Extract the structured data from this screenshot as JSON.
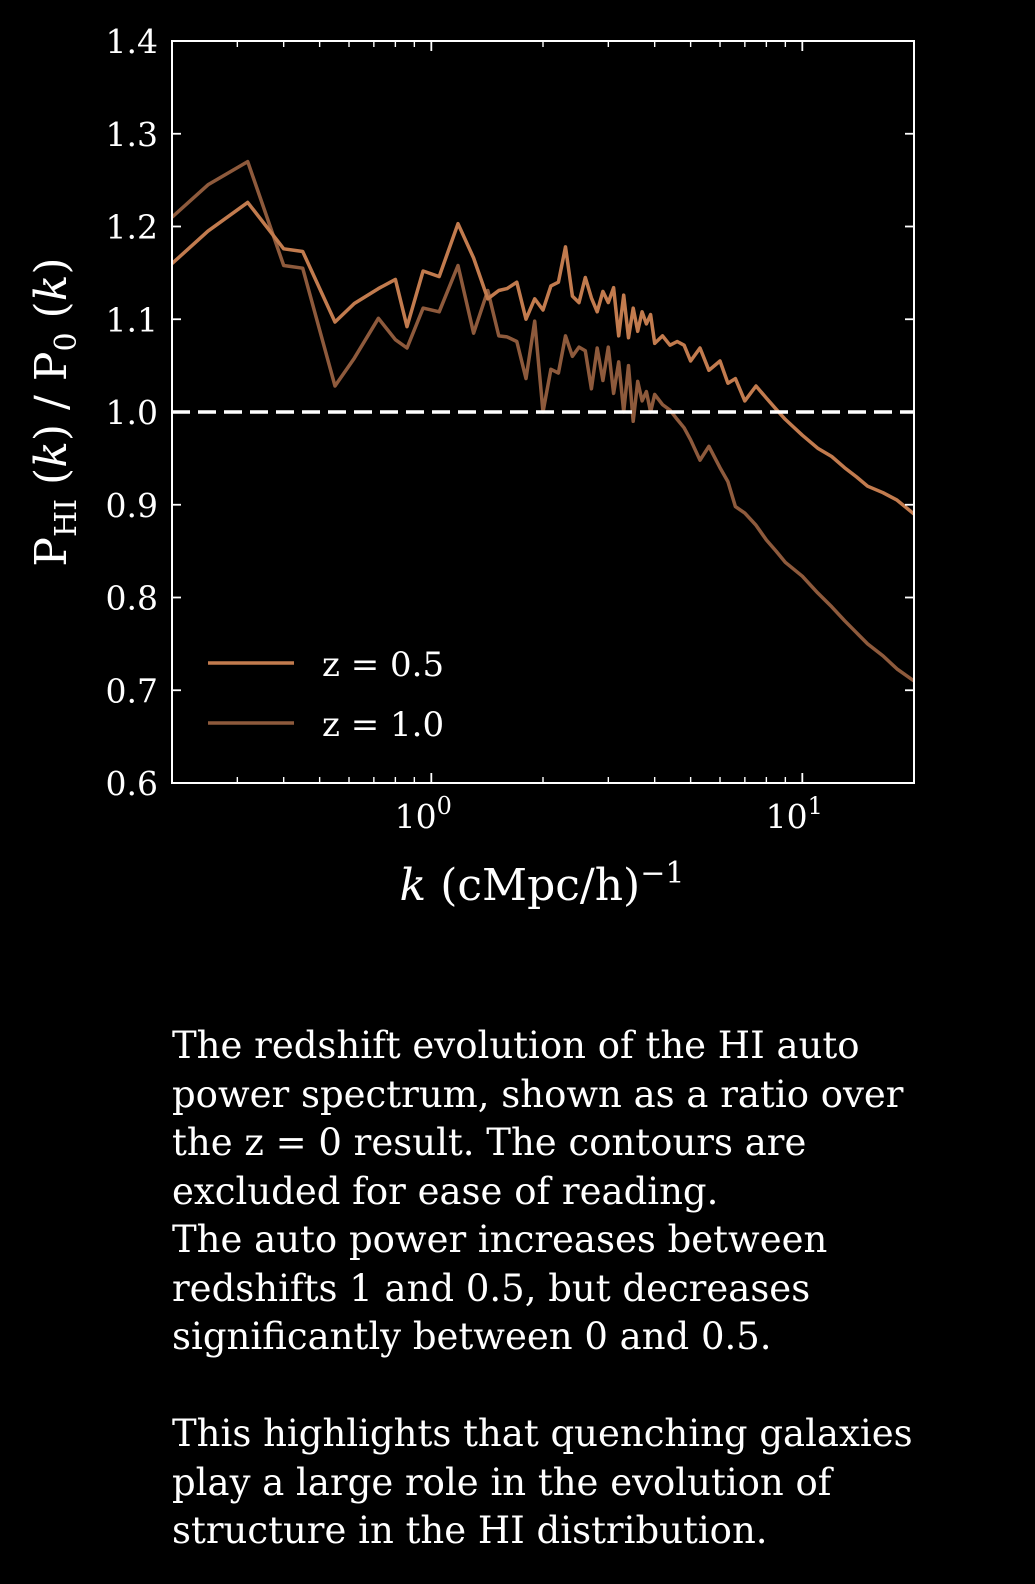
{
  "colors": {
    "background": "#000000",
    "foreground": "#ffffff",
    "z05": "#c27b4e",
    "z10": "#8e5a3c"
  },
  "chart_data": {
    "type": "line",
    "xscale": "log",
    "xlim": [
      0.2,
      20
    ],
    "ylim": [
      0.6,
      1.4
    ],
    "yticks": [
      "0.6",
      "0.7",
      "0.8",
      "0.9",
      "1.0",
      "1.1",
      "1.2",
      "1.3",
      "1.4"
    ],
    "xticks": [
      {
        "base": "10",
        "exp": "0",
        "value": 1
      },
      {
        "base": "10",
        "exp": "1",
        "value": 10
      }
    ],
    "reference_line": {
      "y": 1.0,
      "style": "dashed"
    },
    "legend_placement": "lower-left",
    "series": [
      {
        "name": "z = 0.5",
        "color": "#c27b4e",
        "x": [
          0.2,
          0.25,
          0.32,
          0.4,
          0.45,
          0.55,
          0.62,
          0.72,
          0.8,
          0.86,
          0.95,
          1.05,
          1.18,
          1.3,
          1.42,
          1.52,
          1.6,
          1.7,
          1.8,
          1.9,
          2.0,
          2.1,
          2.2,
          2.3,
          2.4,
          2.5,
          2.6,
          2.7,
          2.8,
          2.9,
          3.0,
          3.1,
          3.2,
          3.3,
          3.4,
          3.5,
          3.6,
          3.7,
          3.8,
          3.9,
          4.0,
          4.2,
          4.4,
          4.6,
          4.8,
          5.0,
          5.3,
          5.6,
          6.0,
          6.3,
          6.6,
          7.0,
          7.5,
          8.0,
          8.5,
          9.0,
          10.0,
          11.0,
          12.0,
          13.0,
          14.0,
          15.0,
          16.5,
          18.0,
          20.0
        ],
        "y": [
          1.16,
          1.195,
          1.226,
          1.176,
          1.173,
          1.097,
          1.117,
          1.133,
          1.143,
          1.092,
          1.152,
          1.146,
          1.203,
          1.166,
          1.122,
          1.131,
          1.133,
          1.14,
          1.1,
          1.122,
          1.11,
          1.136,
          1.14,
          1.178,
          1.125,
          1.118,
          1.145,
          1.123,
          1.108,
          1.13,
          1.118,
          1.134,
          1.082,
          1.126,
          1.08,
          1.112,
          1.087,
          1.108,
          1.095,
          1.105,
          1.074,
          1.082,
          1.072,
          1.076,
          1.072,
          1.055,
          1.069,
          1.045,
          1.055,
          1.031,
          1.036,
          1.012,
          1.028,
          1.015,
          1.003,
          0.992,
          0.975,
          0.961,
          0.952,
          0.94,
          0.93,
          0.92,
          0.913,
          0.905,
          0.89
        ]
      },
      {
        "name": "z = 1.0",
        "color": "#8e5a3c",
        "x": [
          0.2,
          0.25,
          0.32,
          0.4,
          0.45,
          0.55,
          0.62,
          0.72,
          0.8,
          0.86,
          0.95,
          1.05,
          1.18,
          1.3,
          1.42,
          1.52,
          1.6,
          1.7,
          1.8,
          1.9,
          2.0,
          2.1,
          2.2,
          2.3,
          2.4,
          2.5,
          2.6,
          2.7,
          2.8,
          2.9,
          3.0,
          3.1,
          3.2,
          3.3,
          3.4,
          3.5,
          3.6,
          3.7,
          3.8,
          3.9,
          4.0,
          4.2,
          4.4,
          4.6,
          4.8,
          5.0,
          5.3,
          5.6,
          6.0,
          6.3,
          6.6,
          7.0,
          7.5,
          8.0,
          8.5,
          9.0,
          10.0,
          11.0,
          12.0,
          13.0,
          14.0,
          15.0,
          16.5,
          18.0,
          20.0
        ],
        "y": [
          1.21,
          1.245,
          1.27,
          1.158,
          1.155,
          1.028,
          1.058,
          1.101,
          1.078,
          1.069,
          1.112,
          1.108,
          1.158,
          1.085,
          1.131,
          1.082,
          1.081,
          1.076,
          1.036,
          1.098,
          1.0,
          1.046,
          1.042,
          1.082,
          1.06,
          1.07,
          1.066,
          1.025,
          1.069,
          1.034,
          1.07,
          1.02,
          1.054,
          1.0,
          1.05,
          0.99,
          1.033,
          1.012,
          1.022,
          1.0,
          1.019,
          1.008,
          1.002,
          0.992,
          0.983,
          0.97,
          0.948,
          0.963,
          0.94,
          0.925,
          0.898,
          0.891,
          0.878,
          0.862,
          0.85,
          0.838,
          0.823,
          0.805,
          0.79,
          0.775,
          0.762,
          0.75,
          0.737,
          0.723,
          0.71
        ]
      }
    ],
    "xlabel": {
      "var": "k",
      "unit": " (cMpc/h)",
      "exp": "−1"
    },
    "ylabel": {
      "p1": "P",
      "sub1": "HI",
      "open1": " (",
      "var1": "k",
      "close1": ") / P",
      "sub2": "0",
      "open2": " (",
      "var2": "k",
      "close2": ")"
    }
  },
  "caption": {
    "p1": [
      "The redshift evolution of the HI auto",
      "power spectrum, shown as a ratio over",
      "the z = 0 result. The contours are",
      "excluded for ease of reading.",
      "The auto power increases between",
      "redshifts 1 and 0.5, but decreases",
      "significantly between 0 and 0.5."
    ],
    "p2": [
      "This highlights that quenching galaxies",
      "play a large role in the evolution of",
      "structure in the HI distribution."
    ]
  }
}
